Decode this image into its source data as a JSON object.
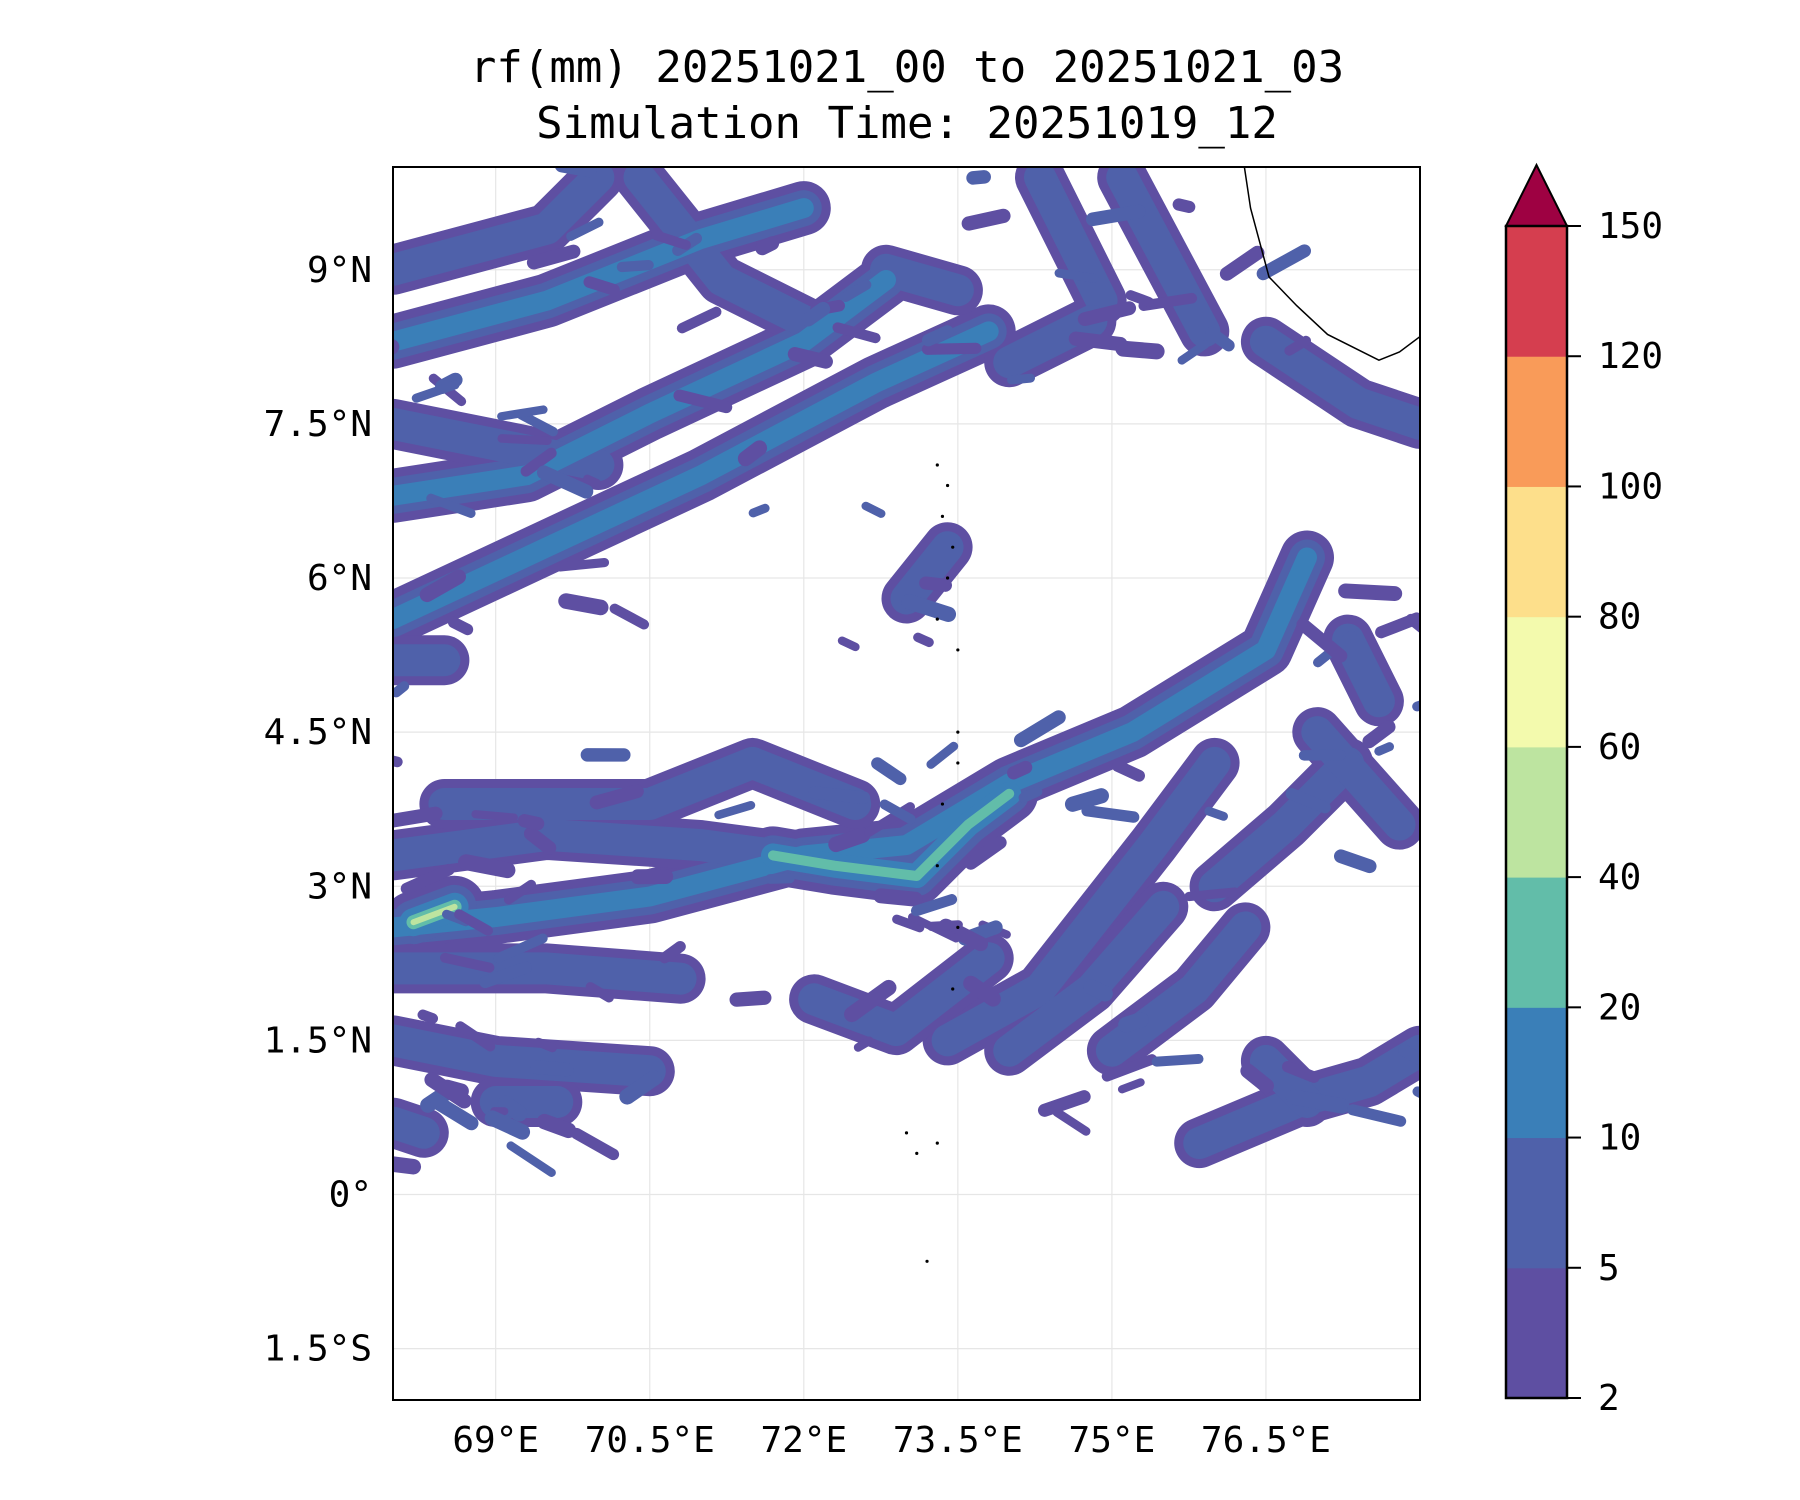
{
  "chart_data": {
    "type": "heatmap",
    "subtype": "filled-contour-map",
    "title": "rf(mm) 20251021_00 to 20251021_03",
    "subtitle": "Simulation Time: 20251019_12",
    "xlabel": "",
    "ylabel": "",
    "xlim": [
      68,
      78
    ],
    "ylim": [
      -2,
      10
    ],
    "grid": true,
    "x_ticks": [
      69,
      70.5,
      72,
      73.5,
      75,
      76.5
    ],
    "x_tick_labels": [
      "69°E",
      "70.5°E",
      "72°E",
      "73.5°E",
      "75°E",
      "76.5°E"
    ],
    "y_ticks": [
      9,
      7.5,
      6,
      4.5,
      3,
      1.5,
      0,
      -1.5
    ],
    "y_tick_labels": [
      "9°N",
      "7.5°N",
      "6°N",
      "4.5°N",
      "3°N",
      "1.5°N",
      "0°",
      "1.5°S"
    ],
    "colorbar": {
      "levels": [
        2,
        5,
        10,
        20,
        40,
        60,
        80,
        100,
        120,
        150
      ],
      "level_labels": [
        "2",
        "5",
        "10",
        "20",
        "40",
        "60",
        "80",
        "100",
        "120",
        "150"
      ],
      "colors": [
        "#5e4fa2",
        "#4f61aa",
        "#3a7fb8",
        "#62bda9",
        "#bde4a0",
        "#f3faad",
        "#fddf8b",
        "#f99b59",
        "#d53e4f"
      ],
      "extend_color": "#9e0142",
      "extend": "max",
      "placement": "right"
    },
    "coastline": [
      [
        76.29,
        10
      ],
      [
        76.35,
        9.6
      ],
      [
        76.53,
        8.93
      ],
      [
        76.8,
        8.65
      ],
      [
        77.1,
        8.37
      ],
      [
        77.6,
        8.12
      ],
      [
        77.8,
        8.2
      ],
      [
        78,
        8.35
      ]
    ],
    "islands": [
      [
        73.3,
        7.1
      ],
      [
        73.4,
        6.9
      ],
      [
        73.35,
        6.6
      ],
      [
        73.45,
        6.3
      ],
      [
        73.4,
        6.0
      ],
      [
        73.3,
        5.6
      ],
      [
        73.5,
        5.3
      ],
      [
        73.5,
        4.5
      ],
      [
        73.5,
        4.2
      ],
      [
        73.35,
        3.8
      ],
      [
        73.3,
        3.2
      ],
      [
        73.5,
        2.6
      ],
      [
        73.45,
        2.0
      ],
      [
        73.0,
        0.6
      ],
      [
        73.1,
        0.4
      ],
      [
        73.3,
        0.5
      ],
      [
        73.2,
        -0.65
      ]
    ],
    "rain_bands": [
      {
        "level": 2,
        "points": [
          [
            68,
            5.6
          ],
          [
            69.5,
            6.3
          ],
          [
            71,
            7.0
          ],
          [
            72.7,
            7.9
          ],
          [
            73.8,
            8.4
          ]
        ]
      },
      {
        "level": 2,
        "points": [
          [
            68,
            6.8
          ],
          [
            69.3,
            7.0
          ],
          [
            70.5,
            7.6
          ],
          [
            72,
            8.3
          ],
          [
            72.8,
            8.9
          ]
        ]
      },
      {
        "level": 2,
        "points": [
          [
            68,
            8.3
          ],
          [
            69.5,
            8.7
          ],
          [
            71,
            9.3
          ],
          [
            72,
            9.6
          ]
        ]
      },
      {
        "level": 1,
        "points": [
          [
            68,
            9.0
          ],
          [
            69.5,
            9.4
          ],
          [
            70,
            9.9
          ]
        ]
      },
      {
        "level": 1,
        "points": [
          [
            68,
            7.5
          ],
          [
            69,
            7.3
          ],
          [
            70,
            7.1
          ]
        ]
      },
      {
        "level": 1,
        "points": [
          [
            70.4,
            9.9
          ],
          [
            71.2,
            8.9
          ],
          [
            72.0,
            8.5
          ]
        ]
      },
      {
        "level": 1,
        "points": [
          [
            72.8,
            9.0
          ],
          [
            73.5,
            8.8
          ]
        ]
      },
      {
        "level": 1,
        "points": [
          [
            74.3,
            9.9
          ],
          [
            74.9,
            8.7
          ]
        ]
      },
      {
        "level": 1,
        "points": [
          [
            75.1,
            9.9
          ],
          [
            75.9,
            8.4
          ]
        ]
      },
      {
        "level": 1,
        "points": [
          [
            74.0,
            8.1
          ],
          [
            74.8,
            8.5
          ]
        ]
      },
      {
        "level": 1,
        "points": [
          [
            76.5,
            8.3
          ],
          [
            77.4,
            7.7
          ],
          [
            78,
            7.5
          ]
        ]
      },
      {
        "level": 1,
        "points": [
          [
            68,
            5.2
          ],
          [
            68.5,
            5.2
          ]
        ]
      },
      {
        "level": 2,
        "points": [
          [
            68,
            2.6
          ],
          [
            69,
            2.7
          ],
          [
            70.5,
            2.9
          ],
          [
            72,
            3.3
          ],
          [
            73.0,
            3.4
          ],
          [
            74.0,
            4.0
          ],
          [
            75.2,
            4.5
          ],
          [
            76.5,
            5.3
          ],
          [
            76.9,
            6.2
          ]
        ]
      },
      {
        "level": 4,
        "points": [
          [
            68.2,
            2.65
          ],
          [
            68.6,
            2.8
          ]
        ]
      },
      {
        "level": 3,
        "points": [
          [
            71.7,
            3.3
          ],
          [
            72.3,
            3.2
          ],
          [
            73.1,
            3.1
          ],
          [
            73.6,
            3.6
          ],
          [
            74.0,
            3.9
          ]
        ]
      },
      {
        "level": 1,
        "points": [
          [
            68,
            3.3
          ],
          [
            69.5,
            3.5
          ],
          [
            71,
            3.4
          ],
          [
            72.5,
            3.2
          ]
        ]
      },
      {
        "level": 1,
        "points": [
          [
            68.5,
            3.8
          ],
          [
            70.5,
            3.8
          ],
          [
            71.5,
            4.2
          ],
          [
            72.5,
            3.8
          ]
        ]
      },
      {
        "level": 1,
        "points": [
          [
            68,
            2.2
          ],
          [
            69.5,
            2.2
          ],
          [
            70.8,
            2.1
          ]
        ]
      },
      {
        "level": 1,
        "points": [
          [
            68,
            1.5
          ],
          [
            69,
            1.3
          ],
          [
            70.5,
            1.2
          ]
        ]
      },
      {
        "level": 1,
        "points": [
          [
            68,
            0.7
          ],
          [
            68.3,
            0.6
          ]
        ]
      },
      {
        "level": 1,
        "points": [
          [
            69,
            0.9
          ],
          [
            69.6,
            0.9
          ]
        ]
      },
      {
        "level": 1,
        "points": [
          [
            73.4,
            1.5
          ],
          [
            74.3,
            2.0
          ],
          [
            75.4,
            3.4
          ],
          [
            76.0,
            4.2
          ]
        ]
      },
      {
        "level": 1,
        "points": [
          [
            72.1,
            1.9
          ],
          [
            72.9,
            1.6
          ],
          [
            73.8,
            2.3
          ]
        ]
      },
      {
        "level": 1,
        "points": [
          [
            74.0,
            1.4
          ],
          [
            74.8,
            2.0
          ],
          [
            75.5,
            2.8
          ]
        ]
      },
      {
        "level": 1,
        "points": [
          [
            75.0,
            1.4
          ],
          [
            75.8,
            2.0
          ],
          [
            76.3,
            2.6
          ]
        ]
      },
      {
        "level": 1,
        "points": [
          [
            76.0,
            3.0
          ],
          [
            76.7,
            3.6
          ],
          [
            77.3,
            4.2
          ]
        ]
      },
      {
        "level": 1,
        "points": [
          [
            75.85,
            0.5
          ],
          [
            76.8,
            0.9
          ],
          [
            77.5,
            1.1
          ],
          [
            78,
            1.4
          ]
        ]
      },
      {
        "level": 1,
        "points": [
          [
            76.5,
            1.3
          ],
          [
            76.9,
            0.9
          ]
        ]
      },
      {
        "level": 1,
        "points": [
          [
            77.0,
            4.5
          ],
          [
            77.8,
            3.6
          ]
        ]
      },
      {
        "level": 1,
        "points": [
          [
            77.3,
            5.4
          ],
          [
            77.6,
            4.8
          ]
        ]
      },
      {
        "level": 1,
        "points": [
          [
            73.0,
            5.8
          ],
          [
            73.4,
            6.3
          ]
        ]
      }
    ]
  }
}
